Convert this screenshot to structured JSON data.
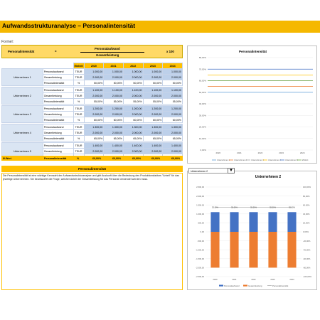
{
  "title": "Aufwandsstrukturanalyse – Personalintensität",
  "formula": {
    "label": "Formel:",
    "name": "Personalintensität",
    "equals": "=",
    "numerator": "Personalaufwand",
    "denominator": "Gesamtleistung",
    "multiplier": "x 100"
  },
  "table": {
    "unit_header": "Einheit",
    "years": [
      "2020",
      "2021",
      "2022",
      "2023",
      "2024"
    ],
    "companies": [
      {
        "name": "Unternehmen 1",
        "rows": [
          {
            "label": "Personalaufwand",
            "unit": "TEUR",
            "values": [
              "1.000,00",
              "1.000,00",
              "1.000,00",
              "1.000,00",
              "1.000,00"
            ]
          },
          {
            "label": "Gesamtleistung",
            "unit": "TEUR",
            "values": [
              "2.000,00",
              "2.000,00",
              "2.000,00",
              "2.000,00",
              "2.000,00"
            ]
          },
          {
            "label": "Personalintensität",
            "unit": "%",
            "values": [
              "50,00%",
              "50,00%",
              "50,00%",
              "50,00%",
              "50,00%"
            ]
          }
        ]
      },
      {
        "name": "Unternehmen 2",
        "rows": [
          {
            "label": "Personalaufwand",
            "unit": "TEUR",
            "values": [
              "1.100,00",
              "1.100,00",
              "1.100,00",
              "1.100,00",
              "1.100,00"
            ]
          },
          {
            "label": "Gesamtleistung",
            "unit": "TEUR",
            "values": [
              "2.000,00",
              "2.000,00",
              "2.000,00",
              "2.000,00",
              "2.000,00"
            ]
          },
          {
            "label": "Personalintensität",
            "unit": "%",
            "values": [
              "55,00%",
              "55,00%",
              "55,00%",
              "55,00%",
              "55,00%"
            ]
          }
        ]
      },
      {
        "name": "Unternehmen 3",
        "rows": [
          {
            "label": "Personalaufwand",
            "unit": "TEUR",
            "values": [
              "1.200,00",
              "1.200,00",
              "1.200,00",
              "1.200,00",
              "1.200,00"
            ]
          },
          {
            "label": "Gesamtleistung",
            "unit": "TEUR",
            "values": [
              "2.000,00",
              "2.000,00",
              "2.000,00",
              "2.000,00",
              "2.000,00"
            ]
          },
          {
            "label": "Personalintensität",
            "unit": "%",
            "values": [
              "60,00%",
              "60,00%",
              "60,00%",
              "60,00%",
              "60,00%"
            ]
          }
        ]
      },
      {
        "name": "Unternehmen 4",
        "rows": [
          {
            "label": "Personalaufwand",
            "unit": "TEUR",
            "values": [
              "1.300,00",
              "1.300,00",
              "1.300,00",
              "1.300,00",
              "1.300,00"
            ]
          },
          {
            "label": "Gesamtleistung",
            "unit": "TEUR",
            "values": [
              "2.000,00",
              "2.000,00",
              "2.000,00",
              "2.000,00",
              "2.000,00"
            ]
          },
          {
            "label": "Personalintensität",
            "unit": "%",
            "values": [
              "65,00%",
              "65,00%",
              "65,00%",
              "65,00%",
              "65,00%"
            ]
          }
        ]
      },
      {
        "name": "Unternehmen 5",
        "rows": [
          {
            "label": "Personalaufwand",
            "unit": "TEUR",
            "values": [
              "1.400,00",
              "1.400,00",
              "1.400,00",
              "1.400,00",
              "1.400,00"
            ]
          },
          {
            "label": "Gesamtleistung",
            "unit": "TEUR",
            "values": [
              "2.000,00",
              "2.000,00",
              "2.000,00",
              "2.000,00",
              "2.000,00"
            ]
          },
          {
            "label": "Personalintensität",
            "unit": "%",
            "values": [
              "70,00%",
              "70,00%",
              "70,00%",
              "70,00%",
              "70,00%"
            ]
          }
        ]
      }
    ],
    "average": {
      "name": "Ø-Wert",
      "label": "Personalintensität",
      "unit": "%",
      "values": [
        "60,00%",
        "60,00%",
        "60,00%",
        "60,00%",
        "60,00%"
      ]
    }
  },
  "section_header": "Personalintensität",
  "description": "Die Personalintensität ist eine wichtige Kennzahl der Aufwandsstrukturanalyse und gibt Auskunft über die Bedeutung des Produktionsfaktors \"Arbeit\" für das jeweilige Unternehmen. Sie beantwortet die Frage, welcher Anteil der Gesamtleistung für das Personal verwendet werden muss.",
  "selector": {
    "value": "Unternehmen 2",
    "arrow": "▼"
  },
  "colors": {
    "accent": "#ffc000",
    "title_bar": "#f5b800",
    "blue_cell": "#bdd0ea",
    "bar_blue": "#4472c4",
    "bar_orange": "#ed7d31",
    "line_grey": "#a5a5a5"
  },
  "chart_data": [
    {
      "type": "line",
      "title": "Personalintensität",
      "x": [
        "2020",
        "2021",
        "2022",
        "2023",
        "2024"
      ],
      "ylim": [
        0,
        80
      ],
      "yticks": [
        "0,00%",
        "10,00%",
        "20,00%",
        "30,00%",
        "40,00%",
        "50,00%",
        "60,00%",
        "70,00%",
        "80,00%"
      ],
      "grid": true,
      "legend": "bottom",
      "series": [
        {
          "name": "Unternehmen 1",
          "values": [
            50,
            50,
            50,
            50,
            50
          ],
          "color": "#5b9bd5"
        },
        {
          "name": "Unternehmen 2",
          "values": [
            55,
            55,
            55,
            55,
            55
          ],
          "color": "#ed7d31"
        },
        {
          "name": "Unternehmen 3",
          "values": [
            60,
            60,
            60,
            60,
            60
          ],
          "color": "#a5a5a5"
        },
        {
          "name": "Unternehmen 4",
          "values": [
            65,
            65,
            65,
            65,
            65
          ],
          "color": "#ffc000"
        },
        {
          "name": "Unternehmen 5",
          "values": [
            70,
            70,
            70,
            70,
            70
          ],
          "color": "#4472c4"
        },
        {
          "name": "Ø-Wert",
          "values": [
            60,
            60,
            60,
            60,
            60
          ],
          "color": "#70ad47"
        }
      ]
    },
    {
      "type": "bar",
      "title": "Unternehmen 2",
      "categories": [
        "2020",
        "2021",
        "2022",
        "2023",
        "2024"
      ],
      "ylim": [
        -2500,
        2500
      ],
      "yticks_left": [
        "-2.500,00",
        "-2.000,00",
        "-1.500,00",
        "-1.000,00",
        "-500,00",
        "0,00",
        "500,00",
        "1.000,00",
        "1.500,00",
        "2.000,00",
        "2.500,00"
      ],
      "y2lim": [
        -100,
        100
      ],
      "yticks_right": [
        "-100,00%",
        "-80,00%",
        "-60,00%",
        "-40,00%",
        "-20,00%",
        "0,00%",
        "20,00%",
        "40,00%",
        "60,00%",
        "80,00%",
        "100,00%"
      ],
      "legend": "bottom",
      "series": [
        {
          "name": "Personalaufwand",
          "values": [
            1100,
            1100,
            1100,
            1100,
            1100
          ],
          "color": "#4472c4",
          "axis": "left"
        },
        {
          "name": "Gesamtleistung",
          "values": [
            -2000,
            -2000,
            -2000,
            -2000,
            -2000
          ],
          "color": "#ed7d31",
          "axis": "left"
        },
        {
          "name": "Personalintensität",
          "values": [
            55,
            55,
            55,
            55,
            55
          ],
          "color": "#a5a5a5",
          "axis": "right"
        }
      ],
      "data_labels": [
        "55,00%",
        "55,00%",
        "55,00%",
        "55,00%",
        "55,00%"
      ]
    }
  ]
}
